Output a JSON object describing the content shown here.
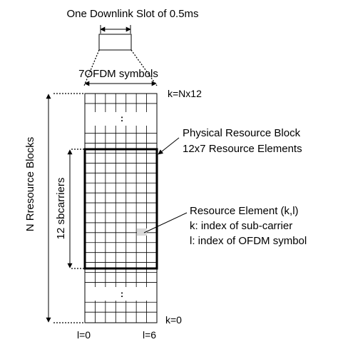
{
  "slot_label": "One Downlink Slot of 0.5ms",
  "symbols_label": "7OFDM symbols",
  "top_index_label": "k=Nx12",
  "bottom_index_label": "k=0",
  "vertical_dots": ":",
  "left_axis_label": "N Rresource Blocks",
  "subcarriers_label": "12 sbcarriers",
  "prb_label_line1": "Physical Resource Block",
  "prb_label_line2": "12x7 Resource Elements",
  "re_label_line1": "Resource Element (k,l)",
  "re_label_line2": "k: index of sub-carrier",
  "re_label_line3": "l: index of OFDM symbol",
  "l_start_label": "l=0",
  "l_end_label": "l=6",
  "grid": {
    "columns": 7,
    "rows_per_block": 12
  }
}
